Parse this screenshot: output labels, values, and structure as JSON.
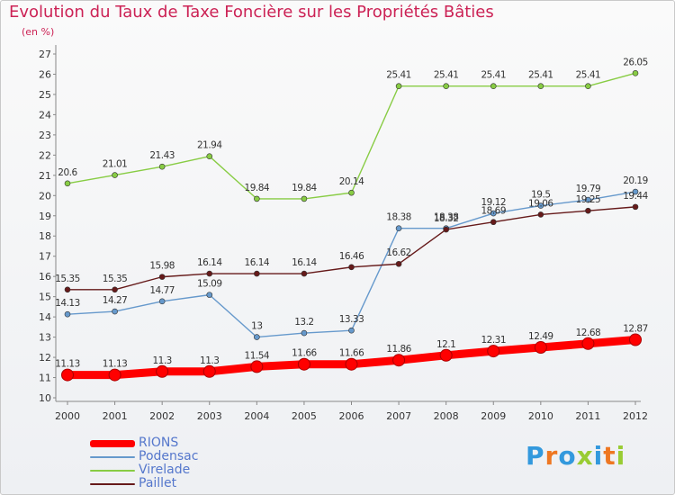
{
  "chart_data": {
    "type": "line",
    "title": "Evolution du Taux de Taxe Foncière sur les Propriétés Bâties",
    "subtitle": "(en %)",
    "x": [
      "2000",
      "2001",
      "2002",
      "2003",
      "2004",
      "2005",
      "2006",
      "2007",
      "2008",
      "2009",
      "2010",
      "2011",
      "2012"
    ],
    "ylim": [
      10,
      27
    ],
    "yticks": [
      10,
      11,
      12,
      13,
      14,
      15,
      16,
      17,
      18,
      19,
      20,
      21,
      22,
      23,
      24,
      25,
      26,
      27
    ],
    "grid": false,
    "legend_position": "bottom-left",
    "series": [
      {
        "name": "RIONS",
        "color": "#ff0000",
        "values": [
          11.13,
          11.13,
          11.3,
          11.3,
          11.54,
          11.66,
          11.66,
          11.86,
          12.1,
          12.31,
          12.49,
          12.68,
          12.87
        ],
        "labels": [
          "11.13",
          "11.13",
          "11.3",
          "11.3",
          "11.54",
          "11.66",
          "11.66",
          "11.86",
          "12.1",
          "12.31",
          "12.49",
          "12.68",
          "12.87"
        ]
      },
      {
        "name": "Podensac",
        "color": "#6699cc",
        "values": [
          14.13,
          14.27,
          14.77,
          15.09,
          13,
          13.2,
          13.33,
          18.38,
          18.38,
          19.12,
          19.5,
          19.79,
          20.19
        ],
        "labels": [
          "14.13",
          "14.27",
          "14.77",
          "15.09",
          "13",
          "13.2",
          "13.33",
          "18.38",
          "18.38",
          "19.12",
          "19.5",
          "19.79",
          "20.19"
        ]
      },
      {
        "name": "Virelade",
        "color": "#88cc44",
        "values": [
          20.6,
          21.01,
          21.43,
          21.94,
          19.84,
          19.84,
          20.14,
          25.41,
          25.41,
          25.41,
          25.41,
          25.41,
          26.05
        ],
        "labels": [
          "20.6",
          "21.01",
          "21.43",
          "21.94",
          "19.84",
          "19.84",
          "20.14",
          "25.41",
          "25.41",
          "25.41",
          "25.41",
          "25.41",
          "26.05"
        ]
      },
      {
        "name": "Paillet",
        "color": "#661a1a",
        "values": [
          15.35,
          15.35,
          15.98,
          16.14,
          16.14,
          16.14,
          16.46,
          16.62,
          18.32,
          18.69,
          19.06,
          19.25,
          19.44
        ],
        "labels": [
          "15.35",
          "15.35",
          "15.98",
          "16.14",
          "16.14",
          "16.14",
          "16.46",
          "16.62",
          "18.32",
          "18.69",
          "19.06",
          "19.25",
          "19.44"
        ]
      }
    ]
  },
  "branding": {
    "logo_text": "Proxiti",
    "logo_colors": [
      "#3399dd",
      "#ee7722",
      "#3399dd",
      "#99cc33",
      "#3399dd",
      "#ee7722",
      "#99cc33"
    ]
  }
}
